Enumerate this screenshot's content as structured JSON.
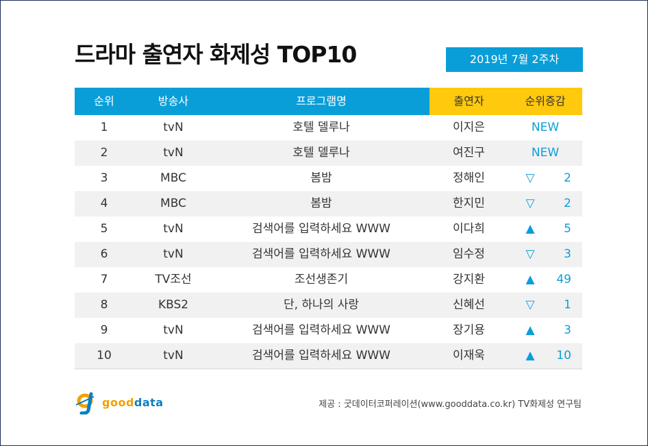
{
  "title": "드라마 출연자 화제성 TOP10",
  "week": "2019년  7월 2주차",
  "headers": {
    "rank": "순위",
    "broadcaster": "방송사",
    "program": "프로그램명",
    "performer": "출연자",
    "change": "순위증감"
  },
  "rows": [
    {
      "rank": "1",
      "broadcaster": "tvN",
      "program": "호텔 델루나",
      "performer": "이지은",
      "change_type": "new",
      "change_text": "NEW",
      "change_value": ""
    },
    {
      "rank": "2",
      "broadcaster": "tvN",
      "program": "호텔 델루나",
      "performer": "여진구",
      "change_type": "new",
      "change_text": "NEW",
      "change_value": ""
    },
    {
      "rank": "3",
      "broadcaster": "MBC",
      "program": "봄밤",
      "performer": "정해인",
      "change_type": "down",
      "change_text": "▽",
      "change_value": "2"
    },
    {
      "rank": "4",
      "broadcaster": "MBC",
      "program": "봄밤",
      "performer": "한지민",
      "change_type": "down",
      "change_text": "▽",
      "change_value": "2"
    },
    {
      "rank": "5",
      "broadcaster": "tvN",
      "program": "검색어를 입력하세요 WWW",
      "performer": "이다희",
      "change_type": "up",
      "change_text": "▲",
      "change_value": "5"
    },
    {
      "rank": "6",
      "broadcaster": "tvN",
      "program": "검색어를 입력하세요 WWW",
      "performer": "임수정",
      "change_type": "down",
      "change_text": "▽",
      "change_value": "3"
    },
    {
      "rank": "7",
      "broadcaster": "TV조선",
      "program": "조선생존기",
      "performer": "강지환",
      "change_type": "up",
      "change_text": "▲",
      "change_value": "49"
    },
    {
      "rank": "8",
      "broadcaster": "KBS2",
      "program": "단, 하나의 사랑",
      "performer": "신혜선",
      "change_type": "down",
      "change_text": "▽",
      "change_value": "1"
    },
    {
      "rank": "9",
      "broadcaster": "tvN",
      "program": "검색어를 입력하세요 WWW",
      "performer": "장기용",
      "change_type": "up",
      "change_text": "▲",
      "change_value": "3"
    },
    {
      "rank": "10",
      "broadcaster": "tvN",
      "program": "검색어를 입력하세요 WWW",
      "performer": "이재욱",
      "change_type": "up",
      "change_text": "▲",
      "change_value": "10"
    }
  ],
  "logo": {
    "text_a": "good",
    "text_b": "data",
    "icon": "gooddata-logo-icon"
  },
  "source": "제공 : 굿데이터코퍼레이션(www.gooddata.co.kr) TV화제성 연구팀",
  "colors": {
    "blue": "#0a9ed8",
    "yellow": "#ffc90e",
    "stripe": "#f1f1f1",
    "border": "#1c2f5a"
  }
}
